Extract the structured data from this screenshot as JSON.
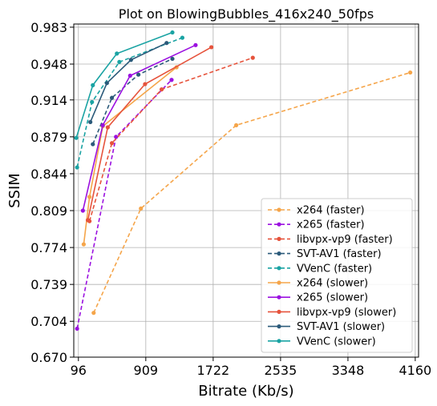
{
  "chart_data": {
    "type": "line",
    "title": "Plot on BlowingBubbles_416x240_50fps",
    "xlabel": "Bitrate (Kb/s)",
    "ylabel": "SSIM",
    "xlim": [
      40,
      4200
    ],
    "ylim": [
      0.67,
      0.986
    ],
    "xticks": [
      96,
      909,
      1722,
      2535,
      3348,
      4160
    ],
    "xtick_labels": [
      "96",
      "909",
      "1722",
      "2535",
      "3348",
      "4160"
    ],
    "yticks": [
      0.67,
      0.704,
      0.739,
      0.774,
      0.809,
      0.844,
      0.879,
      0.914,
      0.948,
      0.983
    ],
    "ytick_labels": [
      "0.670",
      "0.704",
      "0.739",
      "0.774",
      "0.809",
      "0.844",
      "0.879",
      "0.914",
      "0.948",
      "0.983"
    ],
    "grid": true,
    "legend_position": "bottom-right",
    "series": [
      {
        "name": "x264 (faster)",
        "color": "#f5a54a",
        "dash": true,
        "x": [
          280,
          850,
          2000,
          4100
        ],
        "y": [
          0.712,
          0.811,
          0.89,
          0.94
        ]
      },
      {
        "name": "x265 (faster)",
        "color": "#9b11e0",
        "dash": true,
        "x": [
          80,
          550,
          1220
        ],
        "y": [
          0.697,
          0.879,
          0.933
        ]
      },
      {
        "name": "libvpx-vp9 (faster)",
        "color": "#e6533c",
        "dash": true,
        "x": [
          230,
          500,
          1100,
          2200
        ],
        "y": [
          0.799,
          0.873,
          0.924,
          0.954
        ]
      },
      {
        "name": "SVT-AV1 (faster)",
        "color": "#2b5a7a",
        "dash": true,
        "x": [
          270,
          500,
          820,
          1230
        ],
        "y": [
          0.872,
          0.916,
          0.938,
          0.953
        ]
      },
      {
        "name": "VVenC (faster)",
        "color": "#1aa3a3",
        "dash": true,
        "x": [
          80,
          260,
          590,
          1350
        ],
        "y": [
          0.85,
          0.912,
          0.95,
          0.973
        ]
      },
      {
        "name": "x264 (slower)",
        "color": "#f5a54a",
        "dash": false,
        "x": [
          160,
          230,
          390,
          1280
        ],
        "y": [
          0.777,
          0.822,
          0.889,
          0.945
        ]
      },
      {
        "name": "x265 (slower)",
        "color": "#9b11e0",
        "dash": false,
        "x": [
          150,
          390,
          720,
          1510
        ],
        "y": [
          0.809,
          0.89,
          0.937,
          0.966
        ]
      },
      {
        "name": "libvpx-vp9 (slower)",
        "color": "#e6533c",
        "dash": false,
        "x": [
          210,
          450,
          900,
          1700
        ],
        "y": [
          0.8,
          0.888,
          0.929,
          0.964
        ]
      },
      {
        "name": "SVT-AV1 (slower)",
        "color": "#2b5a7a",
        "dash": false,
        "x": [
          240,
          440,
          730,
          1160
        ],
        "y": [
          0.893,
          0.93,
          0.952,
          0.968
        ]
      },
      {
        "name": "VVenC (slower)",
        "color": "#1aa3a3",
        "dash": false,
        "x": [
          70,
          270,
          560,
          1230
        ],
        "y": [
          0.878,
          0.928,
          0.958,
          0.978
        ]
      }
    ]
  }
}
